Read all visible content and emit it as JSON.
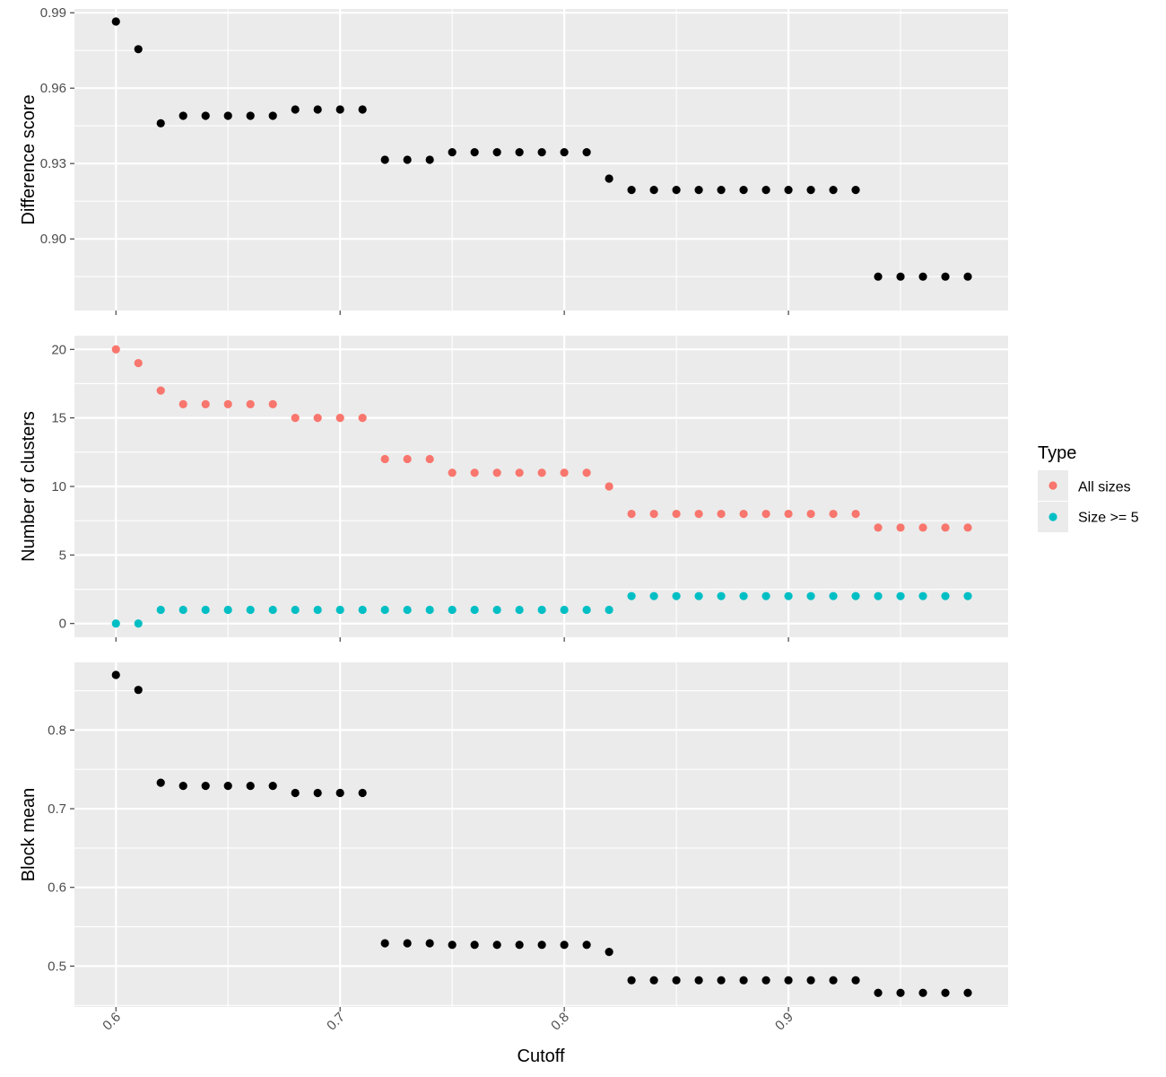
{
  "chart_data": {
    "type": "scatter",
    "xlabel": "Cutoff",
    "xlim": [
      0.5815,
      0.998
    ],
    "x_ticks": [
      "0.6",
      "0.7",
      "0.8",
      "0.9"
    ],
    "x_tick_values": [
      0.6,
      0.7,
      0.8,
      0.9
    ],
    "x": [
      0.6,
      0.61,
      0.62,
      0.63,
      0.64,
      0.65,
      0.66,
      0.67,
      0.68,
      0.69,
      0.7,
      0.71,
      0.72,
      0.73,
      0.74,
      0.75,
      0.76,
      0.77,
      0.78,
      0.79,
      0.8,
      0.81,
      0.82,
      0.83,
      0.84,
      0.85,
      0.86,
      0.87,
      0.88,
      0.89,
      0.9,
      0.91,
      0.92,
      0.93,
      0.94,
      0.95,
      0.96,
      0.97,
      0.98
    ],
    "grid": true,
    "background": "#EBEBEB",
    "panels": [
      {
        "ylabel": "Difference score",
        "ylim": [
          0.8715,
          0.9915
        ],
        "y_ticks": [
          "0.90",
          "0.93",
          "0.96",
          "0.99"
        ],
        "y_tick_values": [
          0.9,
          0.93,
          0.96,
          0.99
        ],
        "series": [
          {
            "color": "#000000",
            "values": [
              0.9865,
              0.9755,
              0.946,
              0.949,
              0.949,
              0.949,
              0.949,
              0.949,
              0.9515,
              0.9515,
              0.9515,
              0.9515,
              0.9315,
              0.9315,
              0.9315,
              0.9345,
              0.9345,
              0.9345,
              0.9345,
              0.9345,
              0.9345,
              0.9345,
              0.924,
              0.9195,
              0.9195,
              0.9195,
              0.9195,
              0.9195,
              0.9195,
              0.9195,
              0.9195,
              0.9195,
              0.9195,
              0.9195,
              0.885,
              0.885,
              0.885,
              0.885,
              0.885
            ]
          }
        ]
      },
      {
        "ylabel": "Number of clusters",
        "ylim": [
          -1,
          21
        ],
        "y_ticks": [
          "0",
          "5",
          "10",
          "15",
          "20"
        ],
        "y_tick_values": [
          0,
          5,
          10,
          15,
          20
        ],
        "series": [
          {
            "name": "All sizes",
            "color": "#F8766D",
            "values": [
              20,
              19,
              17,
              16,
              16,
              16,
              16,
              16,
              15,
              15,
              15,
              15,
              12,
              12,
              12,
              11,
              11,
              11,
              11,
              11,
              11,
              11,
              10,
              8,
              8,
              8,
              8,
              8,
              8,
              8,
              8,
              8,
              8,
              8,
              7,
              7,
              7,
              7,
              7
            ]
          },
          {
            "name": "Size >= 5",
            "color": "#00BFC4",
            "values": [
              0,
              0,
              1,
              1,
              1,
              1,
              1,
              1,
              1,
              1,
              1,
              1,
              1,
              1,
              1,
              1,
              1,
              1,
              1,
              1,
              1,
              1,
              1,
              2,
              2,
              2,
              2,
              2,
              2,
              2,
              2,
              2,
              2,
              2,
              2,
              2,
              2,
              2,
              2
            ]
          }
        ]
      },
      {
        "ylabel": "Block mean",
        "ylim": [
          0.448,
          0.886
        ],
        "y_ticks": [
          "0.5",
          "0.6",
          "0.7",
          "0.8"
        ],
        "y_tick_values": [
          0.5,
          0.6,
          0.7,
          0.8
        ],
        "series": [
          {
            "color": "#000000",
            "values": [
              0.87,
              0.851,
              0.733,
              0.729,
              0.729,
              0.729,
              0.729,
              0.729,
              0.72,
              0.72,
              0.72,
              0.72,
              0.529,
              0.529,
              0.529,
              0.527,
              0.527,
              0.527,
              0.527,
              0.527,
              0.527,
              0.527,
              0.518,
              0.482,
              0.482,
              0.482,
              0.482,
              0.482,
              0.482,
              0.482,
              0.482,
              0.482,
              0.482,
              0.482,
              0.466,
              0.466,
              0.466,
              0.466,
              0.466
            ]
          }
        ]
      }
    ],
    "legend": {
      "title": "Type",
      "position": "right",
      "entries": [
        {
          "label": "All sizes",
          "color": "#F8766D"
        },
        {
          "label": "Size >= 5",
          "color": "#00BFC4"
        }
      ]
    }
  }
}
